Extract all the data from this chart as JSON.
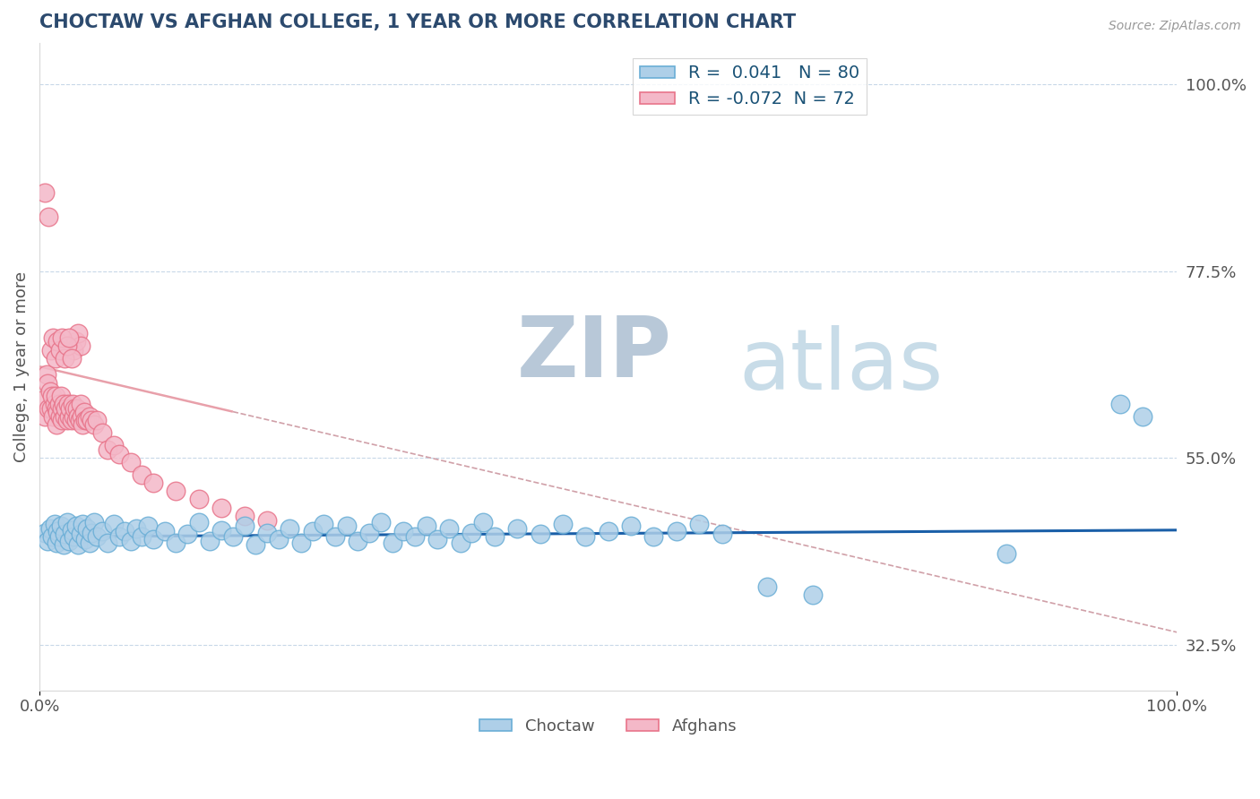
{
  "title": "CHOCTAW VS AFGHAN COLLEGE, 1 YEAR OR MORE CORRELATION CHART",
  "source_text": "Source: ZipAtlas.com",
  "ylabel": "College, 1 year or more",
  "xlim": [
    0.0,
    1.0
  ],
  "ylim": [
    0.27,
    1.05
  ],
  "xtick_labels": [
    "0.0%",
    "100.0%"
  ],
  "ytick_right_values": [
    0.325,
    0.55,
    0.775,
    1.0
  ],
  "ytick_right_labels": [
    "32.5%",
    "55.0%",
    "77.5%",
    "100.0%"
  ],
  "choctaw_color": "#6aaed6",
  "afghan_color": "#e8748a",
  "choctaw_color_fill": "#aecfe8",
  "afghan_color_fill": "#f4b8c8",
  "trend_line_choctaw_color": "#1a5fa8",
  "trend_line_afghan_color": "#e8a0aa",
  "trend_line_afghan_dash_color": "#d0a0a8",
  "title_color": "#2c4a6e",
  "label_color": "#555555",
  "grid_color": "#c8d8e8",
  "background_color": "#ffffff",
  "watermark_zip_color": "#b8c8d8",
  "watermark_atlas_color": "#c8dce8",
  "legend_label_choctaw": "Choctaw",
  "legend_label_afghan": "Afghans",
  "R_choctaw": 0.041,
  "R_afghan": -0.072,
  "N_choctaw": 80,
  "N_afghan": 72,
  "choctaw_trend_intercept": 0.455,
  "choctaw_trend_slope": 0.008,
  "afghan_trend_intercept": 0.66,
  "afghan_trend_slope": -0.32,
  "choctaw_x": [
    0.005,
    0.007,
    0.009,
    0.011,
    0.013,
    0.015,
    0.016,
    0.017,
    0.019,
    0.021,
    0.022,
    0.024,
    0.026,
    0.028,
    0.03,
    0.032,
    0.034,
    0.036,
    0.038,
    0.04,
    0.042,
    0.044,
    0.046,
    0.048,
    0.05,
    0.055,
    0.06,
    0.065,
    0.07,
    0.075,
    0.08,
    0.085,
    0.09,
    0.095,
    0.1,
    0.11,
    0.12,
    0.13,
    0.14,
    0.15,
    0.16,
    0.17,
    0.18,
    0.19,
    0.2,
    0.21,
    0.22,
    0.23,
    0.24,
    0.25,
    0.26,
    0.27,
    0.28,
    0.29,
    0.3,
    0.31,
    0.32,
    0.33,
    0.34,
    0.35,
    0.36,
    0.37,
    0.38,
    0.39,
    0.4,
    0.42,
    0.44,
    0.46,
    0.48,
    0.5,
    0.52,
    0.54,
    0.56,
    0.58,
    0.6,
    0.64,
    0.68,
    0.85,
    0.95,
    0.97
  ],
  "choctaw_y": [
    0.46,
    0.45,
    0.465,
    0.455,
    0.47,
    0.448,
    0.462,
    0.455,
    0.468,
    0.445,
    0.458,
    0.472,
    0.45,
    0.463,
    0.455,
    0.468,
    0.445,
    0.458,
    0.47,
    0.452,
    0.465,
    0.448,
    0.46,
    0.472,
    0.455,
    0.462,
    0.448,
    0.47,
    0.455,
    0.462,
    0.45,
    0.465,
    0.455,
    0.468,
    0.452,
    0.462,
    0.448,
    0.458,
    0.472,
    0.45,
    0.463,
    0.455,
    0.468,
    0.445,
    0.46,
    0.452,
    0.465,
    0.448,
    0.462,
    0.47,
    0.455,
    0.468,
    0.45,
    0.46,
    0.472,
    0.448,
    0.462,
    0.455,
    0.468,
    0.452,
    0.465,
    0.448,
    0.46,
    0.472,
    0.455,
    0.465,
    0.458,
    0.47,
    0.455,
    0.462,
    0.468,
    0.455,
    0.462,
    0.47,
    0.458,
    0.395,
    0.385,
    0.435,
    0.615,
    0.6
  ],
  "afghan_x": [
    0.004,
    0.005,
    0.006,
    0.007,
    0.008,
    0.009,
    0.01,
    0.011,
    0.012,
    0.013,
    0.014,
    0.015,
    0.015,
    0.016,
    0.017,
    0.018,
    0.019,
    0.02,
    0.02,
    0.021,
    0.022,
    0.023,
    0.024,
    0.025,
    0.026,
    0.027,
    0.028,
    0.029,
    0.03,
    0.031,
    0.032,
    0.033,
    0.034,
    0.035,
    0.036,
    0.037,
    0.038,
    0.039,
    0.04,
    0.042,
    0.044,
    0.046,
    0.048,
    0.05,
    0.055,
    0.06,
    0.065,
    0.07,
    0.08,
    0.09,
    0.1,
    0.12,
    0.14,
    0.16,
    0.18,
    0.2,
    0.03,
    0.032,
    0.034,
    0.036,
    0.01,
    0.012,
    0.014,
    0.016,
    0.018,
    0.02,
    0.022,
    0.024,
    0.026,
    0.028,
    0.005,
    0.008
  ],
  "afghan_y": [
    0.62,
    0.6,
    0.65,
    0.64,
    0.61,
    0.63,
    0.61,
    0.625,
    0.6,
    0.615,
    0.625,
    0.59,
    0.61,
    0.605,
    0.615,
    0.6,
    0.625,
    0.61,
    0.595,
    0.615,
    0.6,
    0.61,
    0.595,
    0.615,
    0.6,
    0.61,
    0.595,
    0.615,
    0.6,
    0.61,
    0.595,
    0.61,
    0.6,
    0.595,
    0.615,
    0.6,
    0.59,
    0.605,
    0.595,
    0.595,
    0.6,
    0.595,
    0.59,
    0.595,
    0.58,
    0.56,
    0.565,
    0.555,
    0.545,
    0.53,
    0.52,
    0.51,
    0.5,
    0.49,
    0.48,
    0.475,
    0.68,
    0.69,
    0.7,
    0.685,
    0.68,
    0.695,
    0.67,
    0.69,
    0.68,
    0.695,
    0.67,
    0.685,
    0.695,
    0.67,
    0.87,
    0.84
  ]
}
